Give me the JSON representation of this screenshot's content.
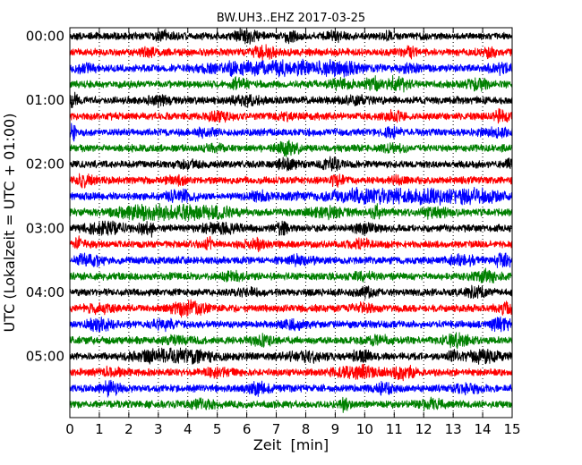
{
  "chart_data": {
    "type": "line",
    "title": "BW.UH3..EHZ 2017-03-25",
    "xlabel": "Zeit  [min]",
    "ylabel": "UTC (Lokalzeit = UTC + 01:00)",
    "xlim": [
      0,
      15
    ],
    "x_ticks": [
      "0",
      "1",
      "2",
      "3",
      "4",
      "5",
      "6",
      "7",
      "8",
      "9",
      "10",
      "11",
      "12",
      "13",
      "14",
      "15"
    ],
    "y_tick_labels": [
      "00:00",
      "01:00",
      "02:00",
      "03:00",
      "04:00",
      "05:00"
    ],
    "traces_per_hour": 4,
    "trace_minutes": 15,
    "trace_colors": [
      "#000000",
      "#ff0000",
      "#0000ff",
      "#008000"
    ],
    "grid": "vertical dotted lines at each minute",
    "rows": [
      {
        "start": "00:00",
        "bursts": [
          [
            6.0,
            0.25,
            1.8
          ],
          [
            7.5,
            0.15,
            1.2
          ],
          [
            9.0,
            0.2,
            0.9
          ],
          [
            3.2,
            0.2,
            0.8
          ],
          [
            10.8,
            0.15,
            0.7
          ]
        ]
      },
      {
        "start": "00:15",
        "bursts": [
          [
            6.6,
            0.3,
            1.2
          ],
          [
            11.5,
            0.2,
            0.8
          ],
          [
            2.7,
            0.2,
            0.7
          ],
          [
            14.2,
            0.2,
            0.7
          ]
        ]
      },
      {
        "start": "00:30",
        "bursts": [
          [
            7.0,
            1.3,
            2.3
          ],
          [
            8.8,
            0.6,
            2.0
          ],
          [
            0.5,
            0.2,
            1.0
          ],
          [
            11.5,
            0.2,
            0.8
          ],
          [
            14.5,
            0.3,
            0.8
          ]
        ]
      },
      {
        "start": "00:45",
        "bursts": [
          [
            10.3,
            0.15,
            1.8
          ],
          [
            11.1,
            0.3,
            1.4
          ],
          [
            5.7,
            0.2,
            0.9
          ],
          [
            9.2,
            0.25,
            0.9
          ],
          [
            13.8,
            0.3,
            0.9
          ]
        ]
      },
      {
        "start": "01:00",
        "bursts": [
          [
            0.1,
            0.1,
            1.5
          ],
          [
            3.0,
            0.3,
            0.9
          ],
          [
            6.0,
            0.3,
            0.8
          ],
          [
            9.7,
            0.3,
            0.7
          ]
        ]
      },
      {
        "start": "01:15",
        "bursts": [
          [
            11.0,
            0.3,
            1.0
          ],
          [
            14.6,
            0.2,
            1.0
          ],
          [
            5.0,
            0.3,
            0.8
          ],
          [
            7.4,
            0.2,
            0.7
          ]
        ]
      },
      {
        "start": "01:30",
        "bursts": [
          [
            0.1,
            0.1,
            1.3
          ],
          [
            10.9,
            0.2,
            0.9
          ],
          [
            14.5,
            0.3,
            0.9
          ],
          [
            4.6,
            0.2,
            0.7
          ]
        ]
      },
      {
        "start": "01:45",
        "bursts": [
          [
            7.4,
            0.25,
            1.2
          ],
          [
            5.0,
            0.3,
            0.5
          ],
          [
            11.0,
            0.3,
            0.4
          ]
        ]
      },
      {
        "start": "02:00",
        "bursts": [
          [
            7.4,
            0.2,
            1.3
          ],
          [
            8.9,
            0.25,
            1.1
          ],
          [
            14.9,
            0.08,
            1.0
          ],
          [
            4.0,
            0.25,
            0.5
          ]
        ]
      },
      {
        "start": "02:15",
        "bursts": [
          [
            0.5,
            0.2,
            1.0
          ],
          [
            9.1,
            0.15,
            1.1
          ],
          [
            3.6,
            0.2,
            0.7
          ],
          [
            11.1,
            0.2,
            0.7
          ]
        ]
      },
      {
        "start": "02:30",
        "bursts": [
          [
            12.3,
            1.3,
            2.0
          ],
          [
            10.2,
            1.0,
            1.2
          ],
          [
            3.8,
            0.4,
            0.9
          ],
          [
            6.5,
            0.3,
            0.8
          ],
          [
            13.5,
            0.5,
            1.0
          ],
          [
            7.5,
            0.2,
            0.6
          ]
        ]
      },
      {
        "start": "02:45",
        "bursts": [
          [
            2.6,
            0.6,
            2.0
          ],
          [
            4.1,
            0.8,
            2.2
          ],
          [
            8.8,
            0.4,
            0.9
          ],
          [
            10.4,
            0.12,
            1.5
          ],
          [
            12.4,
            0.3,
            1.0
          ]
        ]
      },
      {
        "start": "03:00",
        "bursts": [
          [
            2.6,
            0.15,
            2.3
          ],
          [
            7.2,
            0.12,
            1.8
          ],
          [
            1.2,
            0.4,
            1.3
          ],
          [
            5.1,
            0.4,
            1.0
          ],
          [
            10.0,
            0.3,
            0.7
          ]
        ]
      },
      {
        "start": "03:15",
        "bursts": [
          [
            0.3,
            0.1,
            1.4
          ],
          [
            4.7,
            0.1,
            1.6
          ],
          [
            6.3,
            0.3,
            0.9
          ],
          [
            9.9,
            0.3,
            0.7
          ]
        ]
      },
      {
        "start": "03:30",
        "bursts": [
          [
            0.7,
            0.3,
            1.3
          ],
          [
            14.7,
            0.2,
            1.4
          ],
          [
            7.8,
            0.3,
            0.8
          ],
          [
            13.3,
            0.3,
            0.8
          ]
        ]
      },
      {
        "start": "03:45",
        "bursts": [
          [
            14.1,
            0.3,
            1.1
          ],
          [
            5.5,
            0.3,
            0.6
          ],
          [
            9.9,
            0.3,
            0.6
          ]
        ]
      },
      {
        "start": "04:00",
        "bursts": [
          [
            13.8,
            0.3,
            1.0
          ],
          [
            6.0,
            0.3,
            0.7
          ],
          [
            10.0,
            0.25,
            0.7
          ]
        ]
      },
      {
        "start": "04:15",
        "bursts": [
          [
            4.0,
            0.4,
            1.4
          ],
          [
            14.8,
            0.2,
            1.3
          ],
          [
            10.0,
            0.3,
            0.8
          ],
          [
            1.0,
            0.3,
            0.7
          ]
        ]
      },
      {
        "start": "04:30",
        "bursts": [
          [
            1.0,
            0.3,
            1.3
          ],
          [
            14.6,
            0.25,
            1.2
          ],
          [
            3.2,
            0.3,
            0.8
          ],
          [
            7.6,
            0.3,
            0.8
          ]
        ]
      },
      {
        "start": "04:45",
        "bursts": [
          [
            6.5,
            0.25,
            1.1
          ],
          [
            13.1,
            0.3,
            1.1
          ],
          [
            3.6,
            0.25,
            0.7
          ],
          [
            10.4,
            0.3,
            0.8
          ]
        ]
      },
      {
        "start": "05:00",
        "bursts": [
          [
            3.6,
            0.9,
            1.6
          ],
          [
            13.0,
            0.1,
            1.3
          ],
          [
            14.0,
            0.4,
            1.2
          ],
          [
            8.0,
            0.4,
            0.9
          ],
          [
            9.8,
            0.3,
            0.9
          ]
        ]
      },
      {
        "start": "05:15",
        "bursts": [
          [
            9.7,
            0.5,
            1.4
          ],
          [
            11.3,
            0.3,
            1.1
          ],
          [
            1.4,
            0.3,
            0.8
          ],
          [
            5.0,
            0.3,
            0.8
          ]
        ]
      },
      {
        "start": "05:30",
        "bursts": [
          [
            1.4,
            0.2,
            1.6
          ],
          [
            6.4,
            0.25,
            1.2
          ],
          [
            10.7,
            0.3,
            0.8
          ],
          [
            13.5,
            0.3,
            0.8
          ]
        ]
      },
      {
        "start": "05:45",
        "bursts": [
          [
            9.3,
            0.1,
            1.6
          ],
          [
            4.6,
            0.3,
            0.8
          ],
          [
            12.3,
            0.3,
            0.8
          ]
        ]
      }
    ]
  }
}
